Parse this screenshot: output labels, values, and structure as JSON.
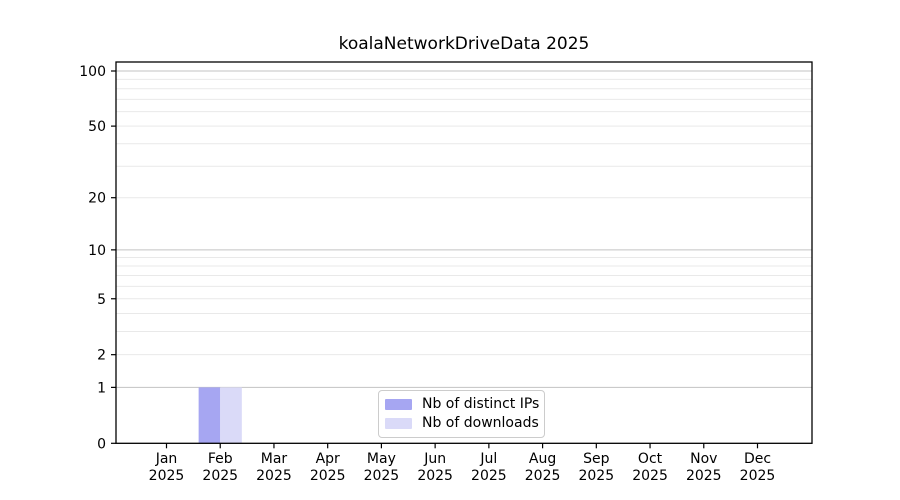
{
  "chart_data": {
    "type": "bar",
    "title": "koalaNetworkDriveData 2025",
    "x_categories": [
      "Jan",
      "Feb",
      "Mar",
      "Apr",
      "May",
      "Jun",
      "Jul",
      "Aug",
      "Sep",
      "Oct",
      "Nov",
      "Dec"
    ],
    "x_year": "2025",
    "xlabel": "",
    "ylabel": "",
    "y_scale": "log1p",
    "ylim": [
      0,
      112
    ],
    "y_ticks": [
      0,
      1,
      2,
      5,
      10,
      20,
      50,
      100
    ],
    "y_gridlines_major": [
      1,
      10,
      100
    ],
    "y_gridlines_minor": [
      2,
      3,
      4,
      5,
      6,
      7,
      8,
      9,
      20,
      30,
      40,
      50,
      60,
      70,
      80,
      90
    ],
    "grid": "horizontal",
    "legend_position": "lower center",
    "series": [
      {
        "name": "Nb of distinct IPs",
        "color": "#a6a6f2",
        "values": [
          0,
          1,
          0,
          0,
          0,
          0,
          0,
          0,
          0,
          0,
          0,
          0
        ]
      },
      {
        "name": "Nb of downloads",
        "color": "#dadaf8",
        "values": [
          0,
          1,
          0,
          0,
          0,
          0,
          0,
          0,
          0,
          0,
          0,
          0
        ]
      }
    ],
    "colors": {
      "grid_major": "#c3c3c3",
      "grid_minor": "#e9e9e9",
      "axis": "#000000",
      "legend_border": "#cccccc",
      "background": "#ffffff"
    }
  }
}
